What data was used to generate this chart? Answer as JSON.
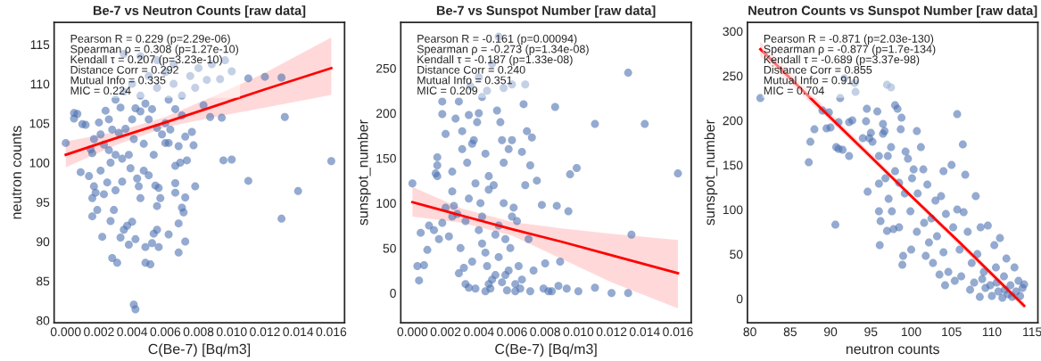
{
  "chart_data": [
    {
      "type": "scatter",
      "title": "Be-7 vs Neutron Counts [raw data]",
      "xlabel": "C(Be-7) [Bq/m3]",
      "ylabel": "neutron counts",
      "grid": false,
      "legend": false,
      "annotations": [
        "Pearson R = 0.229 (p=2.29e-06)",
        "Spearman ρ = 0.308 (p=1.27e-10)",
        "Kendall τ = 0.207 (p=3.23e-10)",
        "Distance Corr = 0.292",
        "Mutual Info = 0.335",
        "MIC = 0.224"
      ],
      "xlim": [
        -0.0007,
        0.0168
      ],
      "ylim": [
        79.7,
        117.8
      ],
      "xticks": [
        {
          "value": 0,
          "label": "0.000"
        },
        {
          "value": 0.002,
          "label": "0.002"
        },
        {
          "value": 0.004,
          "label": "0.004"
        },
        {
          "value": 0.006,
          "label": "0.006"
        },
        {
          "value": 0.008,
          "label": "0.008"
        },
        {
          "value": 0.01,
          "label": "0.010"
        },
        {
          "value": 0.012,
          "label": "0.012"
        },
        {
          "value": 0.014,
          "label": "0.014"
        },
        {
          "value": 0.016,
          "label": "0.016"
        }
      ],
      "yticks": [
        80,
        85,
        90,
        95,
        100,
        105,
        110,
        115
      ],
      "series": [
        {
          "marker": "circle",
          "color": "#4c72b0",
          "x": [
            0.0,
            0.0005,
            0.0005,
            0.0007,
            0.001,
            0.0012,
            0.0015,
            0.0017,
            0.0016,
            0.0009,
            0.0014,
            0.0017,
            0.0016,
            0.0018,
            0.0019,
            0.0016,
            0.0022,
            0.0027,
            0.0029,
            0.0028,
            0.0031,
            0.0033,
            0.0035,
            0.0037,
            0.004,
            0.0038,
            0.0042,
            0.0041,
            0.0042,
            0.0048,
            0.0051,
            0.0048,
            0.0052,
            0.0056,
            0.0053,
            0.0055,
            0.0062,
            0.0068,
            0.0072,
            0.0068,
            0.007,
            0.0071,
            0.0072,
            0.0066,
            0.0066,
            0.0055,
            0.0057,
            0.0056,
            0.0054,
            0.0045,
            0.0044,
            0.0043,
            0.0039,
            0.0034,
            0.003,
            0.0025,
            0.0023,
            0.0021,
            0.0027,
            0.003,
            0.0034,
            0.0038,
            0.0047,
            0.005,
            0.0053,
            0.006,
            0.0066,
            0.0069,
            0.0073,
            0.0078,
            0.0095,
            0.01,
            0.011,
            0.013,
            0.014,
            0.016,
            0.0132,
            0.011,
            0.012,
            0.013,
            0.01,
            0.0096,
            0.0093,
            0.0088,
            0.0094,
            0.0087,
            0.0083,
            0.0076,
            0.0077,
            0.0072,
            0.0068,
            0.0062,
            0.0058,
            0.0055,
            0.005,
            0.0045,
            0.0042,
            0.004,
            0.0036,
            0.0032,
            0.0028,
            0.0026,
            0.0024,
            0.002,
            0.0021,
            0.0023,
            0.0026,
            0.0041,
            0.0047,
            0.0052,
            0.006,
            0.0066,
            0.007,
            0.0063,
            0.003,
            0.0035,
            0.004,
            0.0045,
            0.005,
            0.0055,
            0.006,
            0.0065,
            0.007,
            0.0075,
            0.008,
            0.0085,
            0.0055,
            0.0045,
            0.0035,
            0.0065,
            0.0033,
            0.0048,
            0.0062,
            0.0078
          ],
          "values": [
            102.5,
            106.3,
            105.6,
            106.2,
            104.9,
            104.8,
            101.7,
            103.0,
            101.2,
            98.8,
            98.3,
            97.0,
            95.5,
            96.2,
            94.0,
            93.2,
            90.6,
            92.6,
            94.0,
            87.9,
            87.3,
            90.5,
            91.5,
            92.0,
            92.5,
            89.6,
            90.3,
            82.0,
            81.4,
            87.3,
            87.1,
            89.3,
            89.8,
            89.3,
            91.0,
            91.5,
            90.9,
            88.6,
            90.0,
            92.3,
            94.3,
            93.7,
            95.6,
            96.2,
            97.4,
            94.5,
            95.5,
            96.8,
            97.1,
            95.5,
            97.0,
            98.0,
            99.3,
            97.6,
            96.5,
            97.5,
            96.0,
            99.0,
            100.0,
            101.0,
            100.5,
            101.0,
            99.0,
            98.4,
            101.0,
            102.5,
            99.6,
            100.0,
            100.3,
            97.0,
            100.3,
            100.4,
            97.7,
            92.9,
            96.4,
            100.2,
            105.8,
            110.7,
            110.9,
            110.8,
            111.6,
            113.0,
            110.6,
            112.5,
            105.7,
            105.8,
            107.3,
            103.9,
            102.2,
            103.3,
            102.1,
            102.5,
            103.6,
            104.4,
            105.5,
            106.5,
            106.9,
            105.5,
            104.3,
            103.8,
            104.2,
            105.5,
            106.6,
            105.1,
            103.6,
            102.3,
            101.6,
            103.0,
            102.4,
            106.8,
            105.0,
            106.8,
            106.0,
            104.2,
            108.0,
            109.0,
            110.0,
            108.5,
            111.0,
            109.5,
            111.5,
            110.0,
            108.5,
            111.0,
            112.0,
            110.5,
            113.0,
            113.5,
            113.8,
            112.5,
            107.0,
            107.5,
            108.0,
            109.5
          ]
        },
        {
          "type": "line",
          "marker": "none",
          "color": "#ff0000",
          "x": [
            0.0,
            0.003,
            0.006,
            0.009,
            0.012,
            0.016
          ],
          "values": [
            101.0,
            103.1,
            105.1,
            107.2,
            109.3,
            112.0
          ],
          "lower": [
            99.4,
            102.2,
            104.5,
            105.8,
            107.0,
            108.6
          ],
          "upper": [
            102.7,
            103.9,
            105.8,
            108.5,
            111.4,
            115.9
          ]
        }
      ]
    },
    {
      "type": "scatter",
      "title": "Be-7 vs Sunspot Number [raw data]",
      "xlabel": "C(Be-7) [Bq/m3]",
      "ylabel": "sunspot_number",
      "grid": false,
      "legend": false,
      "annotations": [
        "Pearson R = -0.161 (p=0.00094)",
        "Spearman ρ = -0.273 (p=1.34e-08)",
        "Kendall τ = -0.187 (p=1.33e-08)",
        "Distance Corr = 0.240",
        "Mutual Info = 0.351",
        "MIC = 0.209"
      ],
      "xlim": [
        -0.0007,
        0.0168
      ],
      "ylim": [
        -33,
        301
      ],
      "xticks": [
        {
          "value": 0,
          "label": "0.000"
        },
        {
          "value": 0.002,
          "label": "0.002"
        },
        {
          "value": 0.004,
          "label": "0.004"
        },
        {
          "value": 0.006,
          "label": "0.006"
        },
        {
          "value": 0.008,
          "label": "0.008"
        },
        {
          "value": 0.01,
          "label": "0.010"
        },
        {
          "value": 0.012,
          "label": "0.012"
        },
        {
          "value": 0.014,
          "label": "0.014"
        },
        {
          "value": 0.016,
          "label": "0.016"
        }
      ],
      "yticks": [
        0,
        50,
        100,
        150,
        200,
        250
      ],
      "series": [
        {
          "marker": "circle",
          "color": "#4c72b0",
          "x": [
            0.0,
            0.0003,
            0.0004,
            0.0005,
            0.0007,
            0.0009,
            0.001,
            0.0013,
            0.0014,
            0.0015,
            0.0015,
            0.0015,
            0.0016,
            0.0018,
            0.0018,
            0.0018,
            0.002,
            0.0022,
            0.0024,
            0.0025,
            0.0024,
            0.0026,
            0.0027,
            0.0028,
            0.0029,
            0.003,
            0.003,
            0.0028,
            0.0031,
            0.0032,
            0.0033,
            0.0034,
            0.0034,
            0.0036,
            0.0037,
            0.0038,
            0.0039,
            0.004,
            0.0041,
            0.0042,
            0.0042,
            0.0044,
            0.0044,
            0.0045,
            0.0046,
            0.0047,
            0.0048,
            0.0049,
            0.005,
            0.0051,
            0.0052,
            0.0053,
            0.0054,
            0.0055,
            0.0055,
            0.0056,
            0.0057,
            0.0058,
            0.0059,
            0.006,
            0.0061,
            0.0062,
            0.0063,
            0.0064,
            0.0065,
            0.0066,
            0.0067,
            0.0068,
            0.0069,
            0.007,
            0.0071,
            0.0071,
            0.0072,
            0.0073,
            0.0075,
            0.0078,
            0.0079,
            0.008,
            0.0082,
            0.0084,
            0.0086,
            0.0087,
            0.0088,
            0.0089,
            0.0093,
            0.0094,
            0.0095,
            0.0099,
            0.01,
            0.011,
            0.011,
            0.012,
            0.013,
            0.0132,
            0.013,
            0.014,
            0.016,
            0.0052,
            0.004,
            0.0035,
            0.0045,
            0.0055,
            0.006,
            0.0068,
            0.0042,
            0.0048,
            0.0038,
            0.0046,
            0.005,
            0.0054,
            0.0058,
            0.0062,
            0.0066,
            0.0036,
            0.0044,
            0.0052,
            0.006,
            0.0056,
            0.004,
            0.0032,
            0.0024,
            0.002,
            0.0046,
            0.0034
          ],
          "values": [
            122,
            30,
            14,
            67,
            31,
            48,
            75,
            70,
            133,
            142,
            151,
            130,
            60,
            78,
            199,
            213,
            177,
            63,
            135,
            97,
            113,
            194,
            88,
            22,
            50,
            160,
            180,
            213,
            28,
            10,
            145,
            198,
            6,
            166,
            170,
            122,
            190,
            200,
            100,
            85,
            55,
            155,
            2,
            30,
            130,
            5,
            15,
            120,
            65,
            203,
            40,
            190,
            170,
            145,
            100,
            20,
            3,
            160,
            50,
            170,
            95,
            10,
            80,
            30,
            5,
            157,
            210,
            120,
            180,
            60,
            2,
            142,
            173,
            25,
            125,
            98,
            5,
            33,
            2,
            2,
            207,
            97,
            8,
            35,
            5,
            91,
            132,
            139,
            2,
            188,
            6,
            0,
            245,
            65,
            0,
            188,
            133,
            285,
            240,
            230,
            225,
            228,
            232,
            232,
            218,
            255,
            5,
            10,
            20,
            12,
            25,
            2,
            15,
            35,
            45,
            75,
            85,
            60,
            70,
            80,
            85,
            95,
            115,
            105
          ]
        },
        {
          "type": "line",
          "marker": "none",
          "color": "#ff0000",
          "x": [
            0.0,
            0.003,
            0.006,
            0.009,
            0.012,
            0.016
          ],
          "values": [
            101,
            86,
            71,
            57,
            42,
            22
          ],
          "lower": [
            85,
            78,
            64,
            38,
            12,
            -17
          ],
          "upper": [
            118,
            94,
            79,
            72,
            66,
            59
          ]
        }
      ]
    },
    {
      "type": "scatter",
      "title": "Neutron Counts vs Sunspot Number [raw data]",
      "xlabel": "neutron counts",
      "ylabel": "sunspot_number",
      "grid": false,
      "legend": false,
      "annotations": [
        "Pearson R = -0.871 (p=2.03e-130)",
        "Spearman ρ = -0.877 (p=1.7e-134)",
        "Kendall τ = -0.689 (p=3.37e-98)",
        "Distance Corr = 0.855",
        "Mutual Info = 0.910",
        "MIC = 0.704"
      ],
      "xlim": [
        79.7,
        115.7
      ],
      "ylim": [
        -27,
        310
      ],
      "xticks": [
        80,
        85,
        90,
        95,
        100,
        105,
        110,
        115
      ],
      "yticks": [
        0,
        50,
        100,
        150,
        200,
        250,
        300
      ],
      "series": [
        {
          "marker": "circle",
          "color": "#4c72b0",
          "x": [
            81.3,
            87.3,
            87.5,
            88.0,
            89.0,
            89.5,
            89.8,
            90.0,
            90.6,
            90.7,
            91.0,
            91.5,
            91.0,
            91.2,
            91.7,
            92.3,
            92.3,
            92.7,
            93.0,
            93.1,
            94.0,
            94.4,
            94.5,
            94.6,
            94.8,
            95.0,
            95.2,
            95.8,
            96.0,
            96.0,
            96.0,
            96.1,
            96.2,
            96.5,
            96.5,
            96.7,
            96.8,
            97.0,
            97.0,
            97.5,
            97.1,
            97.5,
            97.2,
            97.6,
            97.8,
            98.0,
            98.3,
            98.0,
            98.5,
            98.5,
            98.7,
            98.8,
            98.9,
            99.0,
            99.2,
            99.3,
            99.6,
            99.9,
            100.0,
            100.1,
            100.3,
            100.7,
            100.7,
            100.8,
            101.2,
            101.5,
            101.6,
            101.8,
            102.0,
            102.2,
            102.5,
            102.7,
            103.0,
            103.2,
            103.5,
            103.7,
            104.0,
            104.0,
            104.2,
            104.3,
            104.6,
            105.0,
            105.2,
            105.4,
            105.7,
            105.7,
            106.0,
            106.2,
            106.4,
            106.5,
            106.7,
            107.0,
            107.3,
            107.5,
            108.0,
            108.2,
            108.5,
            108.6,
            109.0,
            109.5,
            109.8,
            110.0,
            110.3,
            110.5,
            110.8,
            111.0,
            111.3,
            111.5,
            111.8,
            112.0,
            112.3,
            112.5,
            112.8,
            113.0,
            113.3,
            113.5,
            113.8,
            114.0,
            109.2,
            110.6,
            111.6,
            108.8,
            107.8
          ],
          "values": [
            225,
            153,
            176,
            190,
            211,
            191,
            209,
            192,
            83,
            170,
            168,
            167,
            198,
            225,
            247,
            160,
            198,
            200,
            242,
            232,
            180,
            199,
            213,
            120,
            180,
            186,
            176,
            210,
            129,
            160,
            98,
            60,
            87,
            185,
            196,
            188,
            135,
            76,
            240,
            237,
            160,
            170,
            112,
            98,
            78,
            217,
            213,
            143,
            130,
            80,
            190,
            203,
            38,
            48,
            118,
            165,
            157,
            98,
            55,
            135,
            145,
            75,
            188,
            118,
            170,
            145,
            85,
            48,
            128,
            63,
            90,
            40,
            110,
            70,
            27,
            115,
            143,
            52,
            15,
            95,
            30,
            150,
            80,
            20,
            207,
            100,
            55,
            25,
            173,
            97,
            139,
            75,
            10,
            40,
            115,
            50,
            2,
            80,
            30,
            82,
            15,
            3,
            60,
            35,
            8,
            68,
            1,
            25,
            45,
            5,
            15,
            2,
            35,
            8,
            20,
            3,
            12,
            16,
            12,
            18,
            10,
            22,
            18
          ]
        },
        {
          "type": "line",
          "marker": "none",
          "color": "#ff0000",
          "x": [
            81.3,
            90.0,
            100.0,
            106.0,
            114.0
          ],
          "values": [
            280,
            203,
            115,
            63,
            -8
          ],
          "lower": [
            272,
            199,
            112,
            59,
            -12
          ],
          "upper": [
            288,
            208,
            118,
            66,
            -4
          ]
        }
      ]
    }
  ]
}
